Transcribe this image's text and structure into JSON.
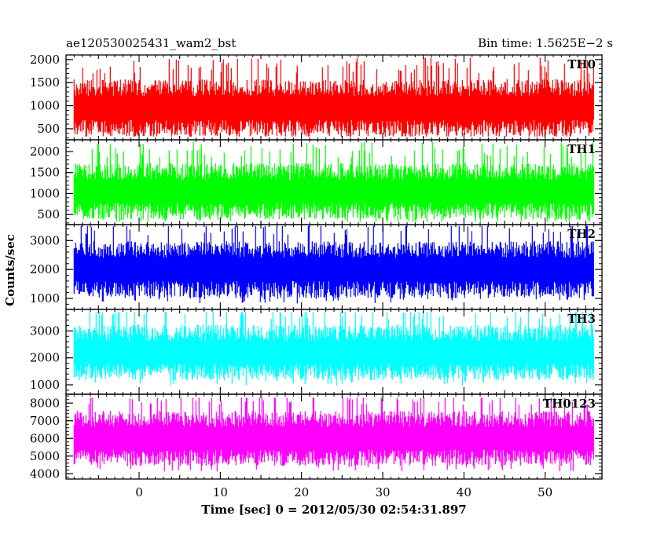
{
  "header": {
    "left_title": "ae120530025431_wam2_bst",
    "right_title": "Bin time: 1.5625E−2 s"
  },
  "chart_data": {
    "type": "line",
    "title": "ae120530025431_wam2_bst",
    "subtitle": "Bin time: 1.5625E−2 s",
    "xlabel": "Time [sec] 0 = 2012/05/30 02:54:31.897",
    "ylabel": "Counts/sec",
    "xlim": [
      -9,
      57
    ],
    "x_ticks": [
      0,
      10,
      20,
      30,
      40,
      50
    ],
    "x_range_data": [
      -8,
      56
    ],
    "bin_time_s": 0.015625,
    "grid": false,
    "legend": "none",
    "series": [
      {
        "name": "TH0",
        "color": "#ff0000",
        "ylim": [
          260,
          2100
        ],
        "y_ticks": [
          500,
          1000,
          1500,
          2000
        ],
        "mean": 950,
        "low": 330,
        "high": 2100
      },
      {
        "name": "TH1",
        "color": "#00ff00",
        "ylim": [
          260,
          2280
        ],
        "y_ticks": [
          500,
          1000,
          1500,
          2000
        ],
        "mean": 1050,
        "low": 330,
        "high": 2250
      },
      {
        "name": "TH2",
        "color": "#0000ff",
        "ylim": [
          620,
          3550
        ],
        "y_ticks": [
          1000,
          2000,
          3000
        ],
        "mean": 2000,
        "low": 700,
        "high": 3500
      },
      {
        "name": "TH3",
        "color": "#00ffff",
        "ylim": [
          650,
          3800
        ],
        "y_ticks": [
          1000,
          2000,
          3000
        ],
        "mean": 2200,
        "low": 750,
        "high": 3700
      },
      {
        "name": "TH0123",
        "color": "#ff00ff",
        "ylim": [
          3700,
          8500
        ],
        "y_ticks": [
          4000,
          5000,
          6000,
          7000,
          8000
        ],
        "mean": 6000,
        "low": 3850,
        "high": 8300
      }
    ]
  }
}
